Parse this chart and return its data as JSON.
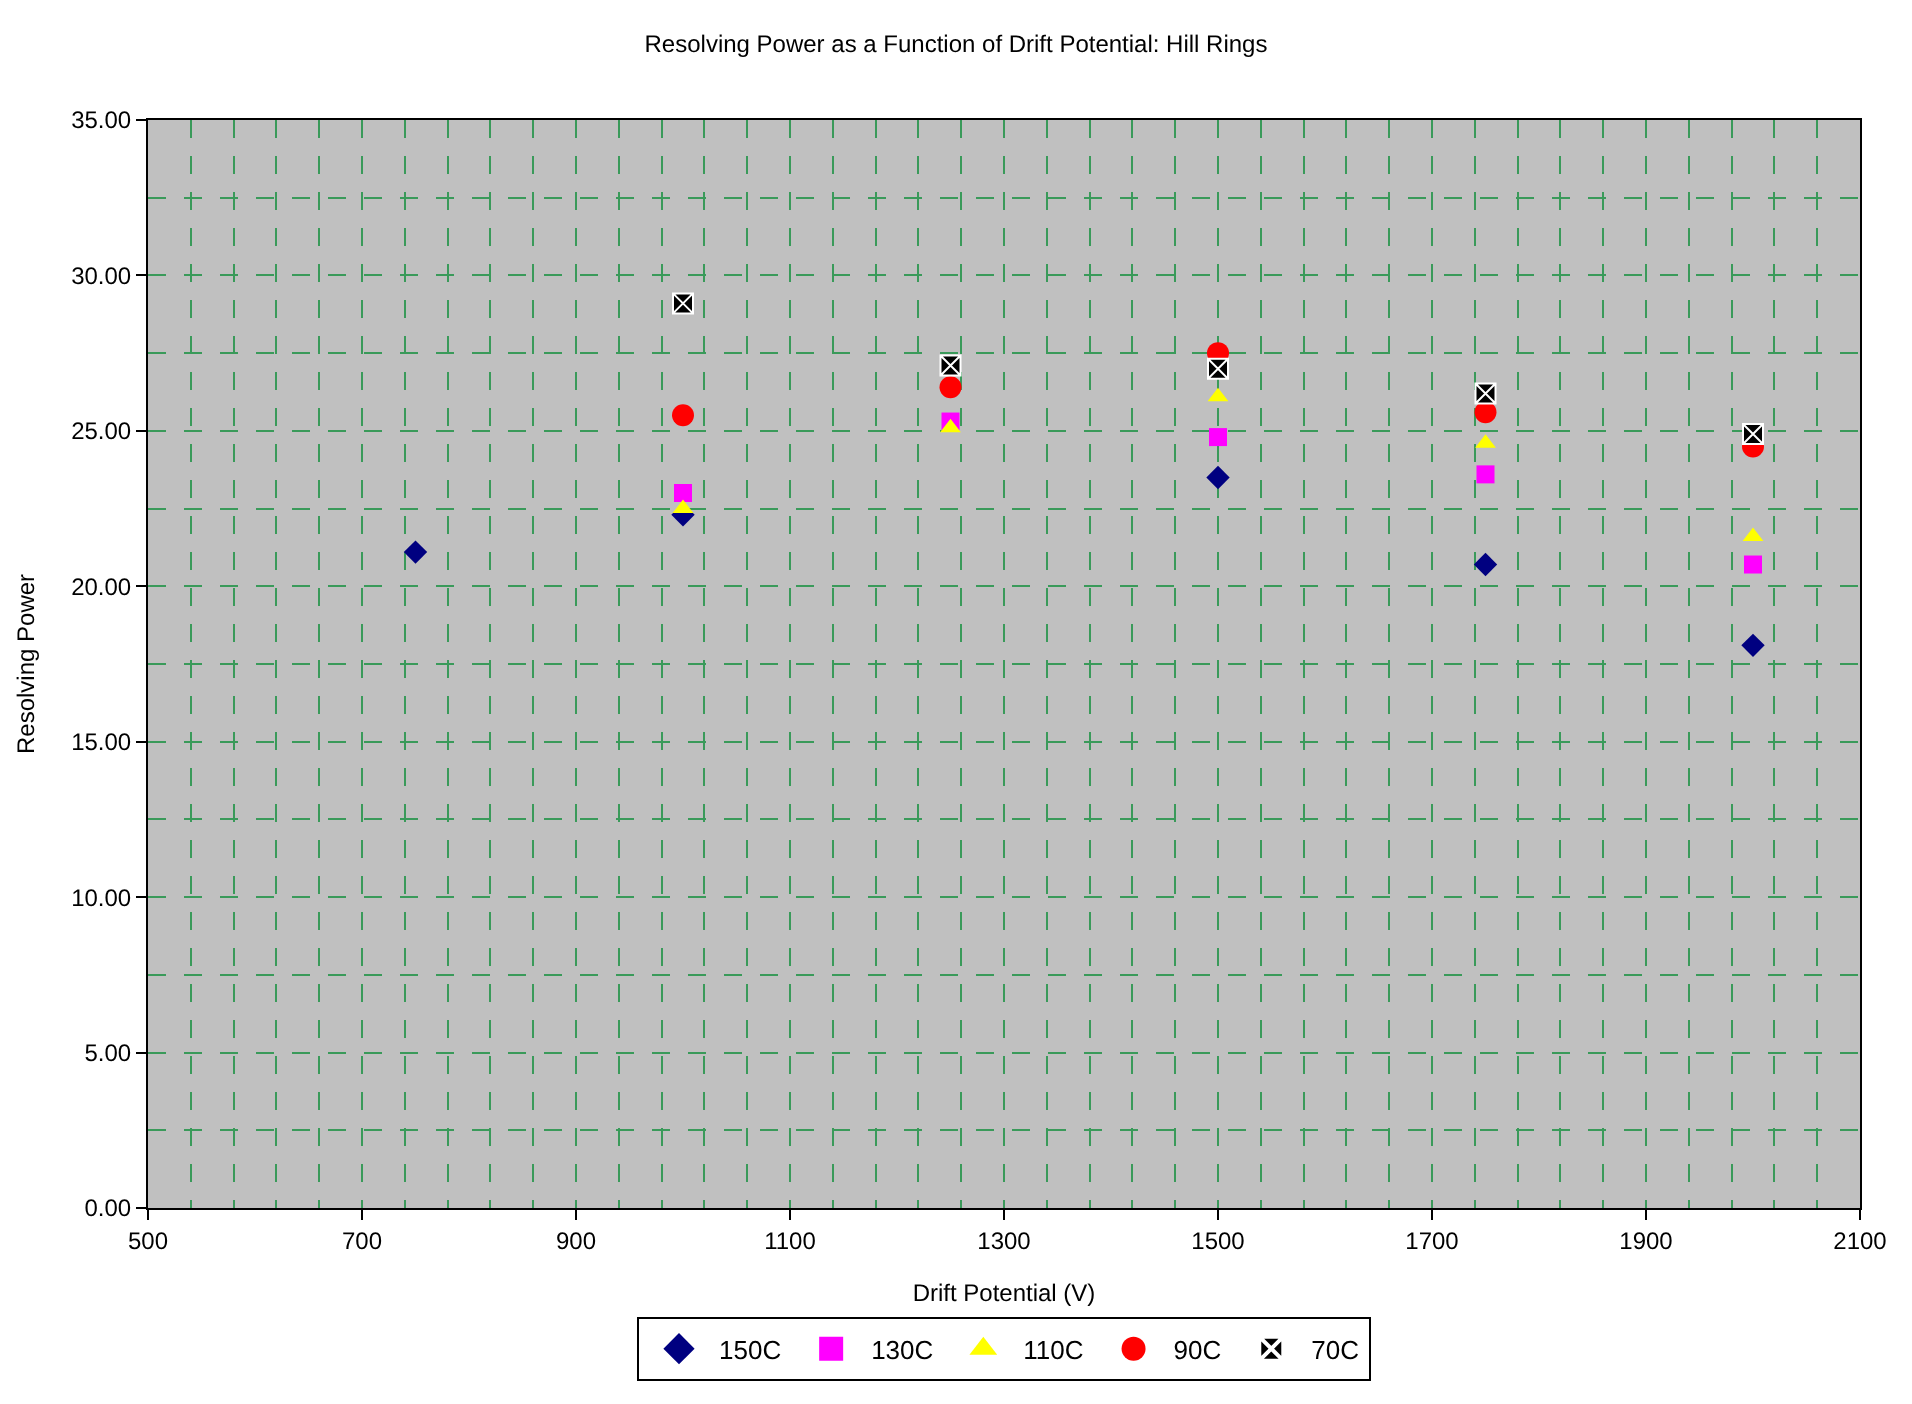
{
  "chart_data": {
    "type": "scatter",
    "title": "Resolving Power as a Function of Drift Potential: Hill Rings",
    "xlabel": "Drift Potential (V)",
    "ylabel": "Resolving Power",
    "x": [
      750,
      1000,
      1250,
      1500,
      1750,
      2000
    ],
    "series": [
      {
        "name": "150C",
        "color": "#000080",
        "marker": "diamond",
        "values": [
          21.1,
          22.3,
          null,
          23.5,
          20.7,
          18.1
        ]
      },
      {
        "name": "130C",
        "color": "#ff00ff",
        "marker": "square",
        "values": [
          null,
          23.0,
          25.3,
          24.8,
          23.6,
          20.7
        ]
      },
      {
        "name": "110C",
        "color": "#ffff00",
        "marker": "triangle",
        "values": [
          null,
          22.5,
          25.1,
          26.1,
          24.6,
          21.6
        ]
      },
      {
        "name": "90C",
        "color": "#ff0000",
        "marker": "circle",
        "values": [
          null,
          25.5,
          26.4,
          27.5,
          25.6,
          24.5
        ]
      },
      {
        "name": "70C",
        "color": "#000000",
        "marker": "cross",
        "values": [
          null,
          29.1,
          27.1,
          27.0,
          26.2,
          24.9
        ]
      }
    ],
    "xlim": [
      500,
      2100
    ],
    "xticks": [
      500,
      700,
      900,
      1100,
      1300,
      1500,
      1700,
      1900,
      2100
    ],
    "ylim": [
      0,
      35
    ],
    "yticks": [
      {
        "value": 0,
        "label": "0.00"
      },
      {
        "value": 5,
        "label": "5.00"
      },
      {
        "value": 10,
        "label": "10.00"
      },
      {
        "value": 15,
        "label": "15.00"
      },
      {
        "value": 20,
        "label": "20.00"
      },
      {
        "value": 25,
        "label": "25.00"
      },
      {
        "value": 30,
        "label": "30.00"
      },
      {
        "value": 35,
        "label": "35.00"
      }
    ],
    "grid": true,
    "legend": "bottom"
  }
}
